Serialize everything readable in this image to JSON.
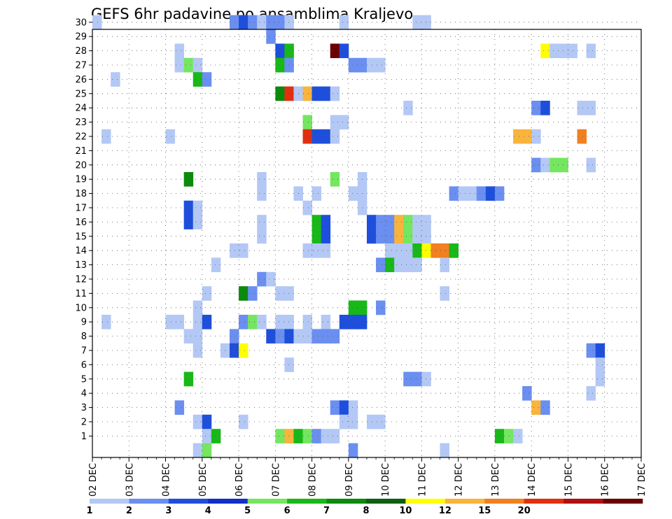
{
  "chart_data": {
    "type": "heatmap",
    "title": "GEFS 6hr padavine po ansamblima Kraljevo",
    "xlabel": "",
    "ylabel": "",
    "x_tick_labels": [
      "02 DEC",
      "03 DEC",
      "04 DEC",
      "05 DEC",
      "06 DEC",
      "07 DEC",
      "08 DEC",
      "09 DEC",
      "10 DEC",
      "11 DEC",
      "12 DEC",
      "13 DEC",
      "14 DEC",
      "15 DEC",
      "16 DEC",
      "17 DEC"
    ],
    "x_range_days": [
      0,
      15
    ],
    "steps_per_day": 4,
    "y_tick_labels": [
      "1",
      "2",
      "3",
      "4",
      "5",
      "6",
      "7",
      "8",
      "9",
      "10",
      "11",
      "12",
      "13",
      "14",
      "15",
      "16",
      "17",
      "18",
      "19",
      "20",
      "21",
      "22",
      "23",
      "24",
      "25",
      "26",
      "27",
      "28",
      "29",
      "30"
    ],
    "grid": true,
    "legend_position": "bottom",
    "colorbar": {
      "labels": [
        "1",
        "2",
        "3",
        "4",
        "5",
        "6",
        "7",
        "8",
        "10",
        "12",
        "15",
        "20"
      ],
      "colors": [
        "#b4c8f5",
        "#6a8ff0",
        "#1e4fdc",
        "#1030c8",
        "#74e660",
        "#18b818",
        "#0c8a0c",
        "#0a6010",
        "#ffff00",
        "#f8b43c",
        "#f08020",
        "#e03010",
        "#b01010",
        "#6a0000"
      ]
    },
    "cells": [
      {
        "m": 30,
        "s": [
          [
            0,
            "#b4c8f5"
          ]
        ]
      },
      {
        "m": 30,
        "s": [
          [
            15,
            "#6a8ff0"
          ],
          [
            16,
            "#1e4fdc"
          ],
          [
            17,
            "#6a8ff0"
          ],
          [
            18,
            "#b4c8f5"
          ],
          [
            19,
            "#6a8ff0"
          ],
          [
            20,
            "#6a8ff0"
          ],
          [
            21,
            "#b4c8f5"
          ],
          [
            27,
            "#b4c8f5"
          ],
          [
            35,
            "#b4c8f5"
          ],
          [
            36,
            "#b4c8f5"
          ]
        ]
      },
      {
        "m": 29,
        "s": [
          [
            19,
            "#6a8ff0"
          ]
        ]
      },
      {
        "m": 28,
        "s": [
          [
            9,
            "#b4c8f5"
          ],
          [
            20,
            "#1e4fdc"
          ],
          [
            21,
            "#18b818"
          ],
          [
            26,
            "#6a0000"
          ],
          [
            27,
            "#1e4fdc"
          ],
          [
            49,
            "#ffff00"
          ],
          [
            50,
            "#b4c8f5"
          ],
          [
            51,
            "#b4c8f5"
          ],
          [
            52,
            "#b4c8f5"
          ],
          [
            54,
            "#b4c8f5"
          ]
        ]
      },
      {
        "m": 27,
        "s": [
          [
            9,
            "#b4c8f5"
          ],
          [
            10,
            "#74e660"
          ],
          [
            11,
            "#b4c8f5"
          ],
          [
            20,
            "#18b818"
          ],
          [
            21,
            "#6a8ff0"
          ],
          [
            28,
            "#6a8ff0"
          ],
          [
            29,
            "#6a8ff0"
          ],
          [
            30,
            "#b4c8f5"
          ],
          [
            31,
            "#b4c8f5"
          ]
        ]
      },
      {
        "m": 26,
        "s": [
          [
            2,
            "#b4c8f5"
          ],
          [
            11,
            "#18b818"
          ],
          [
            12,
            "#6a8ff0"
          ]
        ]
      },
      {
        "m": 25,
        "s": [
          [
            20,
            "#0c8a0c"
          ],
          [
            21,
            "#e03010"
          ],
          [
            22,
            "#b4c8f5"
          ],
          [
            23,
            "#f8b43c"
          ],
          [
            24,
            "#1e4fdc"
          ],
          [
            25,
            "#1e4fdc"
          ],
          [
            26,
            "#b4c8f5"
          ]
        ]
      },
      {
        "m": 24,
        "s": [
          [
            34,
            "#b4c8f5"
          ],
          [
            48,
            "#6a8ff0"
          ],
          [
            49,
            "#1e4fdc"
          ],
          [
            53,
            "#b4c8f5"
          ],
          [
            54,
            "#b4c8f5"
          ]
        ]
      },
      {
        "m": 23,
        "s": [
          [
            23,
            "#74e660"
          ],
          [
            26,
            "#b4c8f5"
          ],
          [
            27,
            "#b4c8f5"
          ]
        ]
      },
      {
        "m": 22,
        "s": [
          [
            1,
            "#b4c8f5"
          ],
          [
            8,
            "#b4c8f5"
          ],
          [
            23,
            "#e03010"
          ],
          [
            24,
            "#1e4fdc"
          ],
          [
            25,
            "#1e4fdc"
          ],
          [
            26,
            "#b4c8f5"
          ],
          [
            46,
            "#f8b43c"
          ],
          [
            47,
            "#f8b43c"
          ],
          [
            48,
            "#b4c8f5"
          ],
          [
            53,
            "#f08020"
          ]
        ]
      },
      {
        "m": 20,
        "s": [
          [
            48,
            "#6a8ff0"
          ],
          [
            49,
            "#b4c8f5"
          ],
          [
            50,
            "#74e660"
          ],
          [
            51,
            "#74e660"
          ],
          [
            54,
            "#b4c8f5"
          ]
        ]
      },
      {
        "m": 19,
        "s": [
          [
            10,
            "#0c8a0c"
          ],
          [
            18,
            "#b4c8f5"
          ],
          [
            26,
            "#74e660"
          ],
          [
            29,
            "#b4c8f5"
          ]
        ]
      },
      {
        "m": 18,
        "s": [
          [
            18,
            "#b4c8f5"
          ],
          [
            22,
            "#b4c8f5"
          ],
          [
            24,
            "#b4c8f5"
          ],
          [
            28,
            "#b4c8f5"
          ],
          [
            29,
            "#b4c8f5"
          ],
          [
            39,
            "#6a8ff0"
          ],
          [
            40,
            "#b4c8f5"
          ],
          [
            41,
            "#b4c8f5"
          ],
          [
            42,
            "#6a8ff0"
          ],
          [
            43,
            "#1e4fdc"
          ],
          [
            44,
            "#6a8ff0"
          ]
        ]
      },
      {
        "m": 17,
        "s": [
          [
            10,
            "#1e4fdc"
          ],
          [
            11,
            "#b4c8f5"
          ],
          [
            23,
            "#b4c8f5"
          ],
          [
            29,
            "#b4c8f5"
          ]
        ]
      },
      {
        "m": 16,
        "s": [
          [
            10,
            "#1e4fdc"
          ],
          [
            11,
            "#b4c8f5"
          ],
          [
            18,
            "#b4c8f5"
          ],
          [
            24,
            "#18b818"
          ],
          [
            25,
            "#1e4fdc"
          ],
          [
            30,
            "#1e4fdc"
          ],
          [
            31,
            "#6a8ff0"
          ],
          [
            32,
            "#6a8ff0"
          ],
          [
            33,
            "#f8b43c"
          ],
          [
            34,
            "#74e660"
          ],
          [
            35,
            "#b4c8f5"
          ],
          [
            36,
            "#b4c8f5"
          ]
        ]
      },
      {
        "m": 15,
        "s": [
          [
            18,
            "#b4c8f5"
          ],
          [
            24,
            "#18b818"
          ],
          [
            25,
            "#1e4fdc"
          ],
          [
            30,
            "#1e4fdc"
          ],
          [
            31,
            "#6a8ff0"
          ],
          [
            32,
            "#6a8ff0"
          ],
          [
            33,
            "#f8b43c"
          ],
          [
            34,
            "#74e660"
          ],
          [
            35,
            "#b4c8f5"
          ],
          [
            36,
            "#b4c8f5"
          ]
        ]
      },
      {
        "m": 14,
        "s": [
          [
            15,
            "#b4c8f5"
          ],
          [
            16,
            "#b4c8f5"
          ],
          [
            23,
            "#b4c8f5"
          ],
          [
            24,
            "#b4c8f5"
          ],
          [
            25,
            "#b4c8f5"
          ],
          [
            32,
            "#b4c8f5"
          ],
          [
            33,
            "#b4c8f5"
          ],
          [
            34,
            "#b4c8f5"
          ],
          [
            35,
            "#18b818"
          ],
          [
            36,
            "#ffff00"
          ],
          [
            37,
            "#f08020"
          ],
          [
            38,
            "#f08020"
          ],
          [
            39,
            "#18b818"
          ]
        ]
      },
      {
        "m": 13,
        "s": [
          [
            13,
            "#b4c8f5"
          ],
          [
            31,
            "#6a8ff0"
          ],
          [
            32,
            "#18b818"
          ],
          [
            33,
            "#b4c8f5"
          ],
          [
            34,
            "#b4c8f5"
          ],
          [
            35,
            "#b4c8f5"
          ],
          [
            38,
            "#b4c8f5"
          ]
        ]
      },
      {
        "m": 12,
        "s": [
          [
            18,
            "#6a8ff0"
          ],
          [
            19,
            "#b4c8f5"
          ]
        ]
      },
      {
        "m": 11,
        "s": [
          [
            12,
            "#b4c8f5"
          ],
          [
            16,
            "#0c8a0c"
          ],
          [
            17,
            "#6a8ff0"
          ],
          [
            20,
            "#b4c8f5"
          ],
          [
            21,
            "#b4c8f5"
          ],
          [
            38,
            "#b4c8f5"
          ]
        ]
      },
      {
        "m": 10,
        "s": [
          [
            11,
            "#b4c8f5"
          ],
          [
            28,
            "#18b818"
          ],
          [
            29,
            "#18b818"
          ],
          [
            31,
            "#6a8ff0"
          ]
        ]
      },
      {
        "m": 9,
        "s": [
          [
            1,
            "#b4c8f5"
          ],
          [
            8,
            "#b4c8f5"
          ],
          [
            9,
            "#b4c8f5"
          ],
          [
            11,
            "#b4c8f5"
          ],
          [
            12,
            "#1e4fdc"
          ],
          [
            16,
            "#6a8ff0"
          ],
          [
            17,
            "#74e660"
          ],
          [
            18,
            "#b4c8f5"
          ],
          [
            20,
            "#b4c8f5"
          ],
          [
            21,
            "#b4c8f5"
          ],
          [
            23,
            "#b4c8f5"
          ],
          [
            25,
            "#b4c8f5"
          ],
          [
            27,
            "#1e4fdc"
          ],
          [
            28,
            "#1e4fdc"
          ],
          [
            29,
            "#1e4fdc"
          ]
        ]
      },
      {
        "m": 8,
        "s": [
          [
            10,
            "#b4c8f5"
          ],
          [
            11,
            "#b4c8f5"
          ],
          [
            15,
            "#6a8ff0"
          ],
          [
            19,
            "#1e4fdc"
          ],
          [
            20,
            "#6a8ff0"
          ],
          [
            21,
            "#1e4fdc"
          ],
          [
            22,
            "#b4c8f5"
          ],
          [
            23,
            "#b4c8f5"
          ],
          [
            24,
            "#6a8ff0"
          ],
          [
            25,
            "#6a8ff0"
          ],
          [
            26,
            "#6a8ff0"
          ]
        ]
      },
      {
        "m": 7,
        "s": [
          [
            11,
            "#b4c8f5"
          ],
          [
            14,
            "#b4c8f5"
          ],
          [
            15,
            "#1e4fdc"
          ],
          [
            16,
            "#ffff00"
          ],
          [
            54,
            "#6a8ff0"
          ],
          [
            55,
            "#1e4fdc"
          ]
        ]
      },
      {
        "m": 6,
        "s": [
          [
            21,
            "#b4c8f5"
          ],
          [
            55,
            "#b4c8f5"
          ]
        ]
      },
      {
        "m": 5,
        "s": [
          [
            10,
            "#18b818"
          ],
          [
            34,
            "#6a8ff0"
          ],
          [
            35,
            "#6a8ff0"
          ],
          [
            36,
            "#b4c8f5"
          ],
          [
            55,
            "#b4c8f5"
          ]
        ]
      },
      {
        "m": 4,
        "s": [
          [
            47,
            "#6a8ff0"
          ],
          [
            54,
            "#b4c8f5"
          ]
        ]
      },
      {
        "m": 3,
        "s": [
          [
            9,
            "#6a8ff0"
          ],
          [
            26,
            "#6a8ff0"
          ],
          [
            27,
            "#1e4fdc"
          ],
          [
            28,
            "#b4c8f5"
          ],
          [
            48,
            "#f8b43c"
          ],
          [
            49,
            "#6a8ff0"
          ]
        ]
      },
      {
        "m": 2,
        "s": [
          [
            11,
            "#b4c8f5"
          ],
          [
            12,
            "#1e4fdc"
          ],
          [
            16,
            "#b4c8f5"
          ],
          [
            27,
            "#b4c8f5"
          ],
          [
            28,
            "#b4c8f5"
          ],
          [
            30,
            "#b4c8f5"
          ],
          [
            31,
            "#b4c8f5"
          ]
        ]
      },
      {
        "m": 1,
        "s": [
          [
            12,
            "#b4c8f5"
          ],
          [
            13,
            "#18b818"
          ],
          [
            20,
            "#74e660"
          ],
          [
            21,
            "#f8b43c"
          ],
          [
            22,
            "#18b818"
          ],
          [
            23,
            "#74e660"
          ],
          [
            24,
            "#6a8ff0"
          ],
          [
            25,
            "#b4c8f5"
          ],
          [
            26,
            "#b4c8f5"
          ],
          [
            44,
            "#18b818"
          ],
          [
            45,
            "#74e660"
          ],
          [
            46,
            "#b4c8f5"
          ]
        ]
      },
      {
        "m": 0,
        "s": [
          [
            11,
            "#b4c8f5"
          ],
          [
            12,
            "#74e660"
          ],
          [
            28,
            "#6a8ff0"
          ],
          [
            38,
            "#b4c8f5"
          ]
        ]
      }
    ]
  }
}
